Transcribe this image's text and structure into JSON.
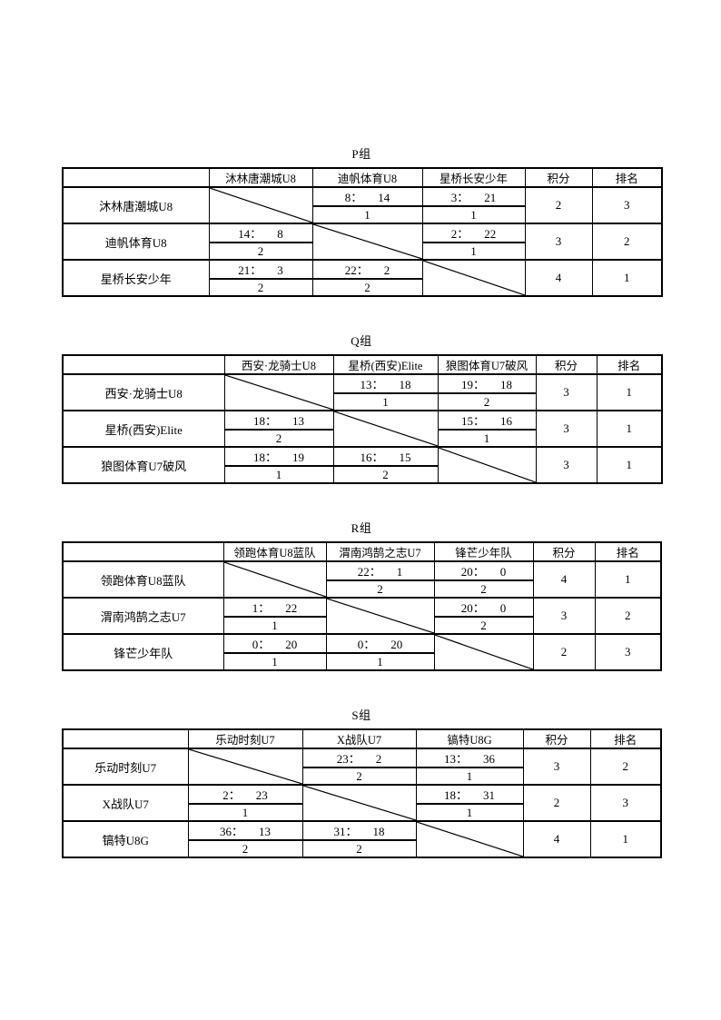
{
  "page_background": "#ffffff",
  "border_color": "#000000",
  "headers": {
    "points": "积分",
    "rank": "排名"
  },
  "groups": [
    {
      "title": "P组",
      "opponents": [
        "沐林唐潮城U8",
        "迪帆体育U8",
        "星桥长安少年"
      ],
      "rows": [
        {
          "team": "沐林唐潮城U8",
          "results": [
            null,
            {
              "score": "8：14",
              "match_points": "1"
            },
            {
              "score": "3：21",
              "match_points": "1"
            }
          ],
          "points": "2",
          "rank": "3"
        },
        {
          "team": "迪帆体育U8",
          "results": [
            {
              "score": "14：8",
              "match_points": "2"
            },
            null,
            {
              "score": "2：22",
              "match_points": "1"
            }
          ],
          "points": "3",
          "rank": "2"
        },
        {
          "team": "星桥长安少年",
          "results": [
            {
              "score": "21：3",
              "match_points": "2"
            },
            {
              "score": "22：2",
              "match_points": "2"
            },
            null
          ],
          "points": "4",
          "rank": "1"
        }
      ]
    },
    {
      "title": "Q组",
      "opponents": [
        "西安·龙骑士U8",
        "星桥(西安)Elite",
        "狼图体育U7破风"
      ],
      "rows": [
        {
          "team": "西安·龙骑士U8",
          "results": [
            null,
            {
              "score": "13：18",
              "match_points": "1"
            },
            {
              "score": "19：18",
              "match_points": "2"
            }
          ],
          "points": "3",
          "rank": "1"
        },
        {
          "team": "星桥(西安)Elite",
          "results": [
            {
              "score": "18：13",
              "match_points": "2"
            },
            null,
            {
              "score": "15：16",
              "match_points": "1"
            }
          ],
          "points": "3",
          "rank": "1"
        },
        {
          "team": "狼图体育U7破风",
          "results": [
            {
              "score": "18：19",
              "match_points": "1"
            },
            {
              "score": "16：15",
              "match_points": "2"
            },
            null
          ],
          "points": "3",
          "rank": "1"
        }
      ]
    },
    {
      "title": "R组",
      "opponents": [
        "领跑体育U8蓝队",
        "渭南鸿鹄之志U7",
        "锋芒少年队"
      ],
      "rows": [
        {
          "team": "领跑体育U8蓝队",
          "results": [
            null,
            {
              "score": "22：1",
              "match_points": "2"
            },
            {
              "score": "20：0",
              "match_points": "2"
            }
          ],
          "points": "4",
          "rank": "1"
        },
        {
          "team": "渭南鸿鹄之志U7",
          "results": [
            {
              "score": "1：22",
              "match_points": "1"
            },
            null,
            {
              "score": "20：0",
              "match_points": "2"
            }
          ],
          "points": "3",
          "rank": "2"
        },
        {
          "team": "锋芒少年队",
          "results": [
            {
              "score": "0：20",
              "match_points": "1"
            },
            {
              "score": "0：20",
              "match_points": "1"
            },
            null
          ],
          "points": "2",
          "rank": "3"
        }
      ]
    },
    {
      "title": "S组",
      "opponents": [
        "乐动时刻U7",
        "X战队U7",
        "镐特U8G"
      ],
      "rows": [
        {
          "team": "乐动时刻U7",
          "results": [
            null,
            {
              "score": "23：2",
              "match_points": "2"
            },
            {
              "score": "13：36",
              "match_points": "1"
            }
          ],
          "points": "3",
          "rank": "2"
        },
        {
          "team": "X战队U7",
          "results": [
            {
              "score": "2：23",
              "match_points": "1"
            },
            null,
            {
              "score": "18：31",
              "match_points": "1"
            }
          ],
          "points": "2",
          "rank": "3"
        },
        {
          "team": "镐特U8G",
          "results": [
            {
              "score": "36：13",
              "match_points": "2"
            },
            {
              "score": "31：18",
              "match_points": "2"
            },
            null
          ],
          "points": "4",
          "rank": "1"
        }
      ]
    }
  ]
}
